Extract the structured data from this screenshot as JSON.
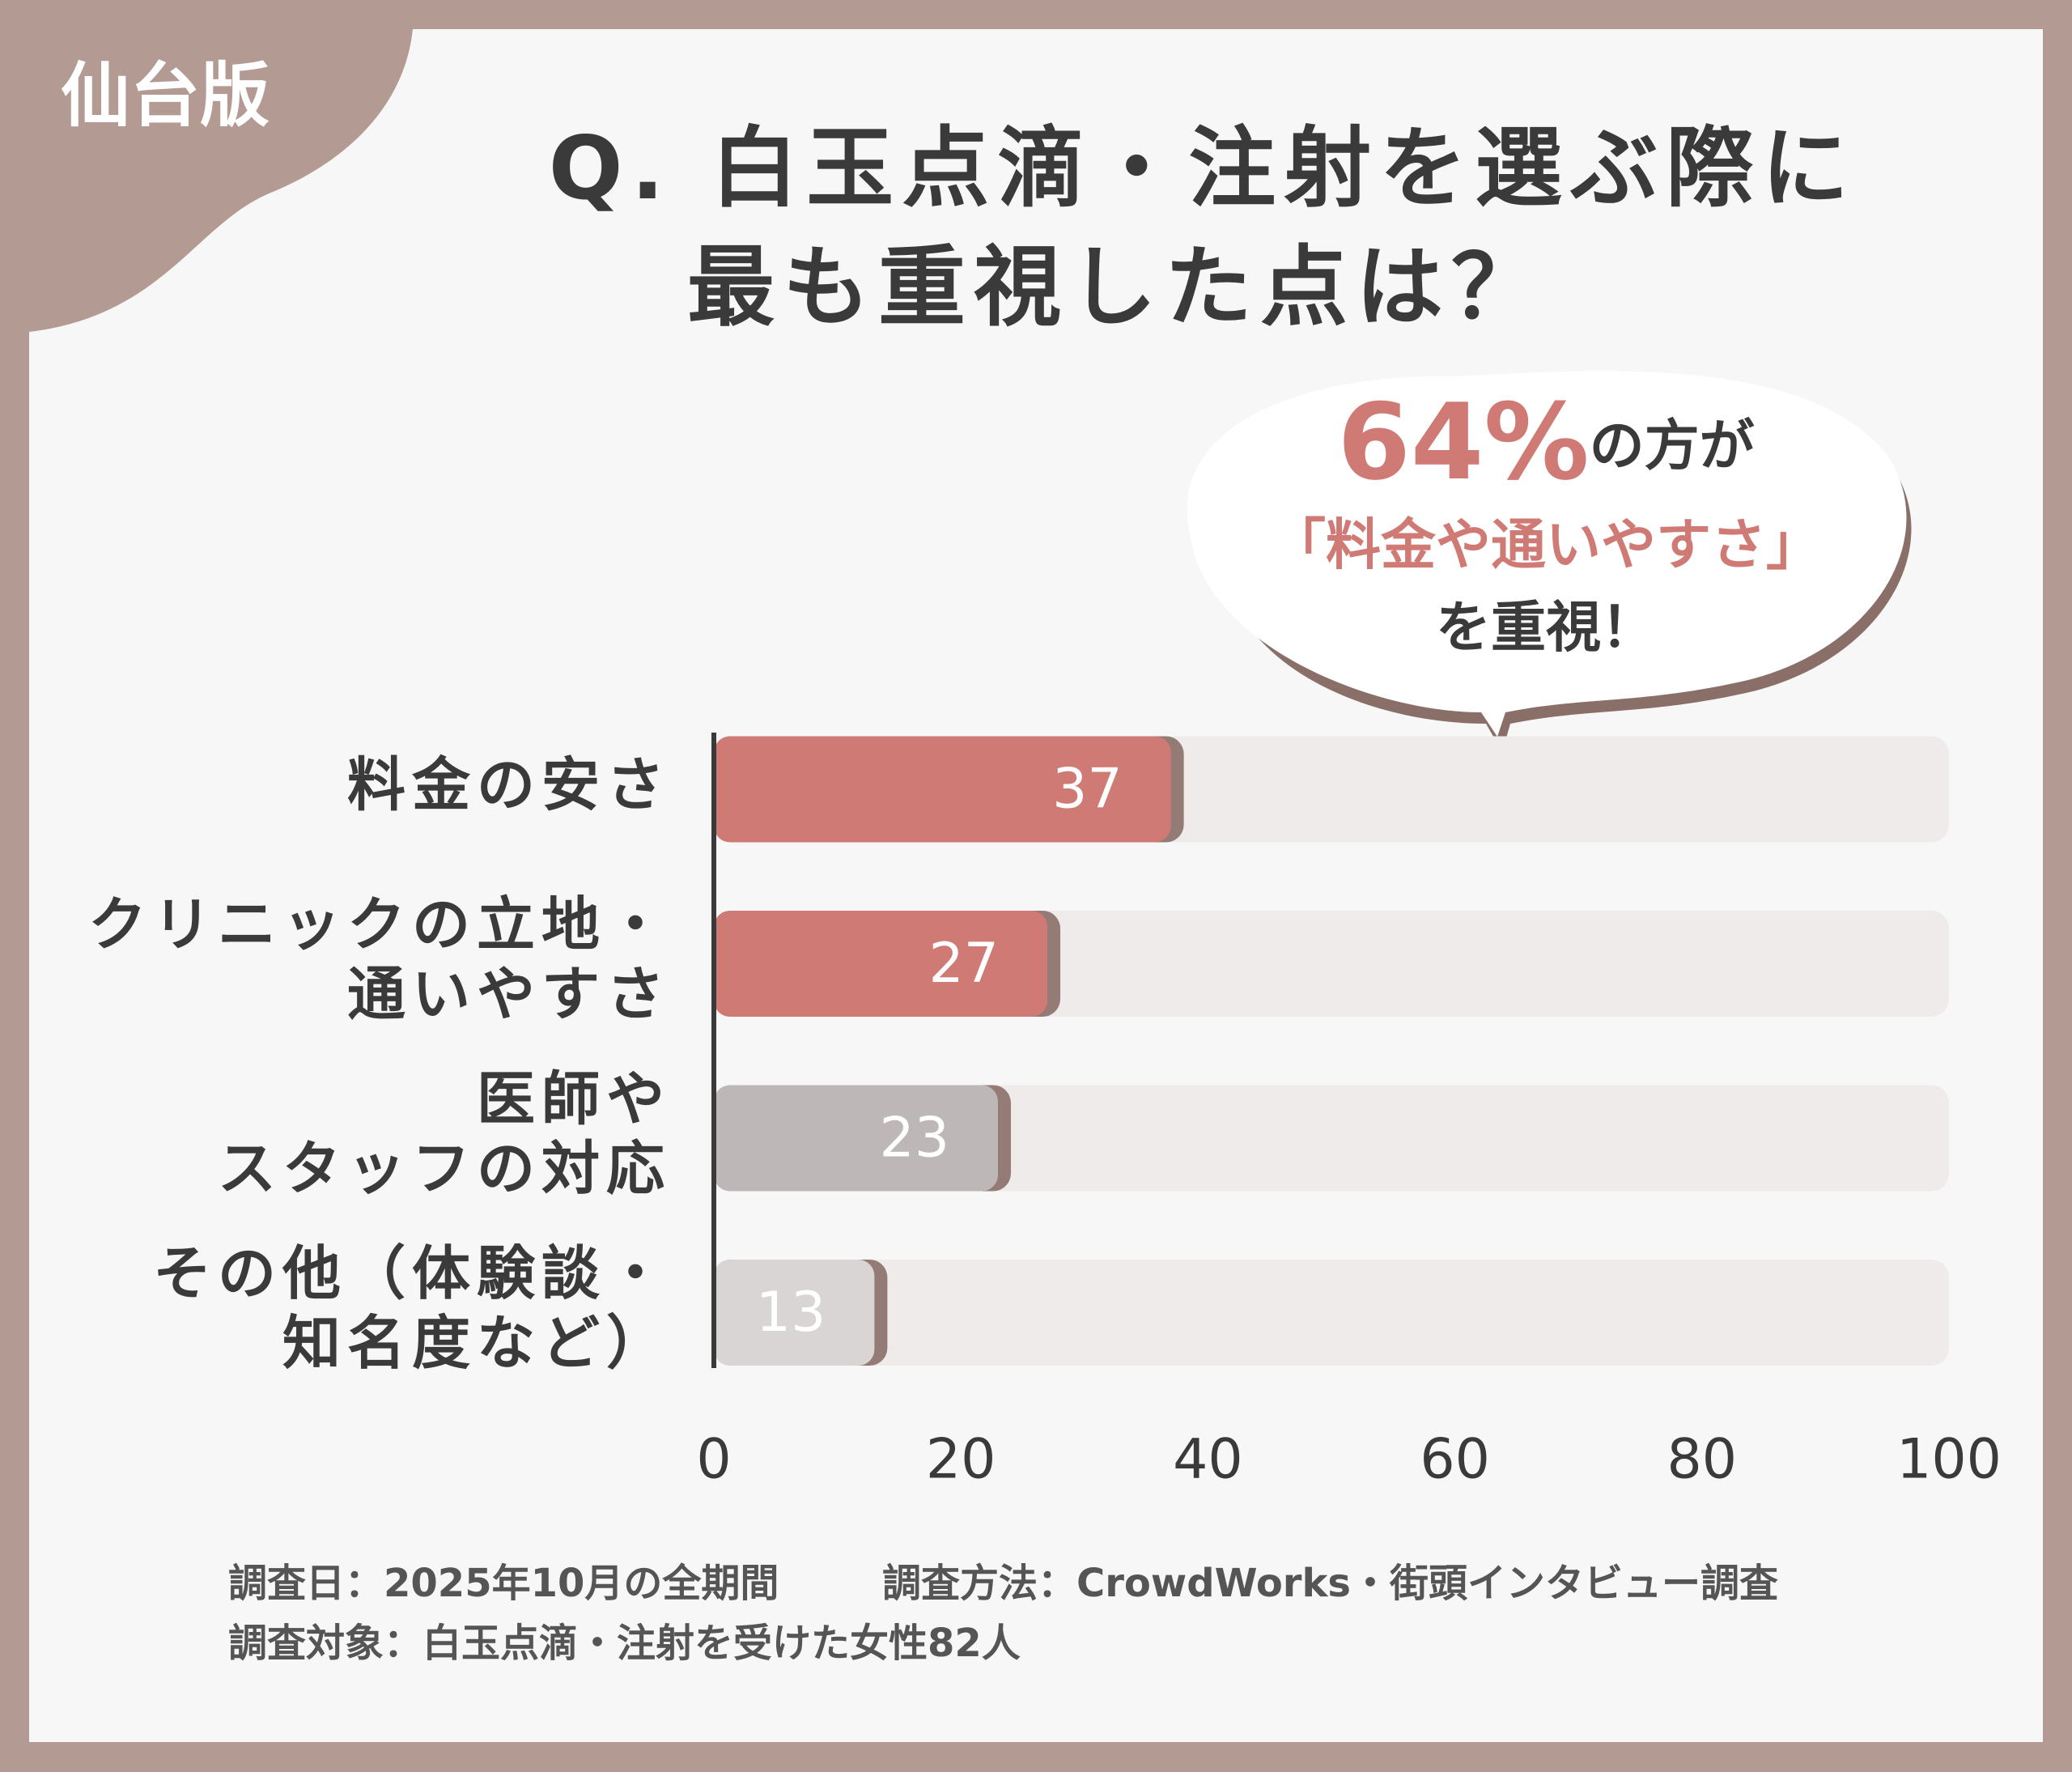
{
  "badge": "仙台版",
  "callout": {
    "highlight": "64%",
    "text1": "の方が",
    "text2": "「料金や通いやすさ」",
    "text3": "を重視！"
  },
  "footnotes": [
    "調査日：2025年10月の全期間",
    "調査方法：CrowdWorks・街頭インタビュー調査",
    "調査対象：白玉点滴・注射を受けた女性82人"
  ],
  "chart_data": {
    "type": "bar",
    "orientation": "horizontal",
    "title": [
      "Q. 白玉点滴・注射を選ぶ際に",
      "最も重視した点は？"
    ],
    "categories": [
      [
        "料金の安さ"
      ],
      [
        "クリニックの立地・",
        "通いやすさ"
      ],
      [
        "医師や",
        "スタッフの対応"
      ],
      [
        "その他（体験談・",
        "知名度など）"
      ]
    ],
    "values": [
      37,
      27,
      23,
      13
    ],
    "colors": [
      "#d07a75",
      "#d07a75",
      "#bdb8b7",
      "#d9d5d5"
    ],
    "xlim": [
      0,
      100
    ],
    "xticks": [
      0,
      20,
      40,
      60,
      80,
      100
    ],
    "grid": false
  }
}
